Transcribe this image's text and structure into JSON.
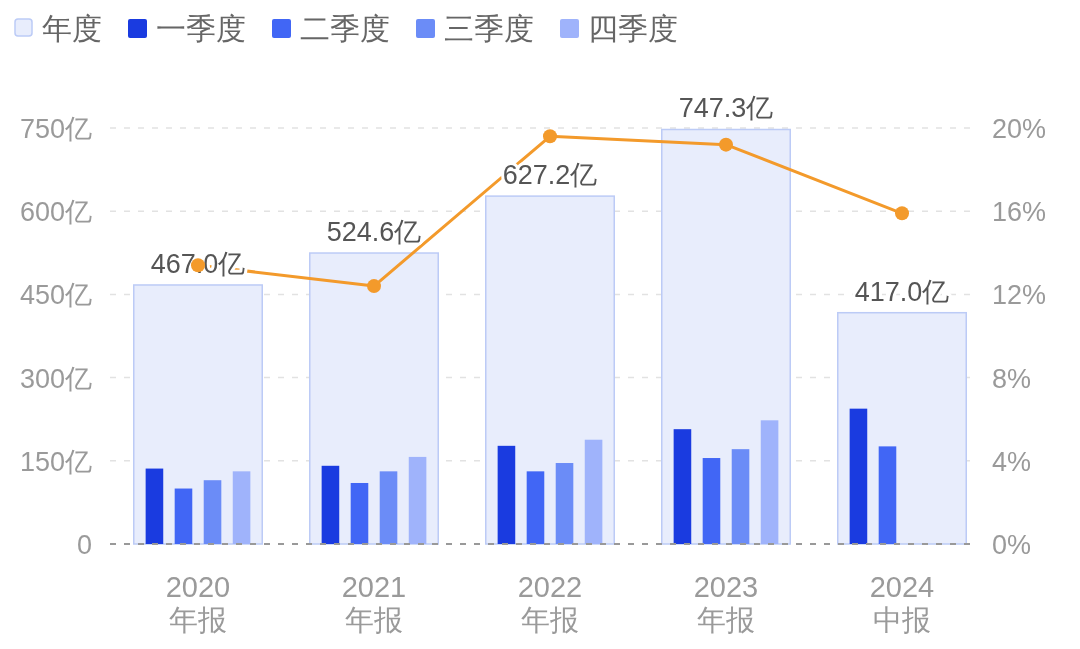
{
  "chart_data": {
    "type": "bar",
    "categories": [
      "2020 年报",
      "2021 年报",
      "2022 年报",
      "2023 年报",
      "2024 中报"
    ],
    "series": [
      {
        "name": "年度",
        "color": "#e8edfc",
        "values": [
          467.0,
          524.6,
          627.2,
          747.3,
          417.0
        ],
        "value_labels": [
          "467.0亿",
          "524.6亿",
          "627.2亿",
          "747.3亿",
          "417.0亿"
        ]
      },
      {
        "name": "一季度",
        "color": "#1a3be0",
        "values": [
          136,
          141,
          177,
          207,
          244
        ]
      },
      {
        "name": "二季度",
        "color": "#4166f5",
        "values": [
          100,
          110,
          131,
          155,
          176
        ]
      },
      {
        "name": "三季度",
        "color": "#6b8cf7",
        "values": [
          115,
          131,
          146,
          171,
          null
        ]
      },
      {
        "name": "四季度",
        "color": "#9fb3fb",
        "values": [
          131,
          157,
          188,
          223,
          null
        ]
      },
      {
        "type": "line",
        "axis": "y2",
        "color": "#f39a2b",
        "values": [
          13.4,
          12.4,
          19.6,
          19.2,
          15.9
        ]
      }
    ],
    "ylim": [
      0,
      750
    ],
    "yticks": [
      {
        "value": 0,
        "label": "0"
      },
      {
        "value": 150,
        "label": "150亿"
      },
      {
        "value": 300,
        "label": "300亿"
      },
      {
        "value": 450,
        "label": "450亿"
      },
      {
        "value": 600,
        "label": "600亿"
      },
      {
        "value": 750,
        "label": "750亿"
      }
    ],
    "y2lim": [
      0,
      20
    ],
    "y2ticks": [
      {
        "value": 0,
        "label": "0%"
      },
      {
        "value": 4,
        "label": "4%"
      },
      {
        "value": 8,
        "label": "8%"
      },
      {
        "value": 12,
        "label": "12%"
      },
      {
        "value": 16,
        "label": "16%"
      },
      {
        "value": 20,
        "label": "20%"
      }
    ],
    "grid": "y",
    "legend": "top left",
    "marker": "circle"
  }
}
